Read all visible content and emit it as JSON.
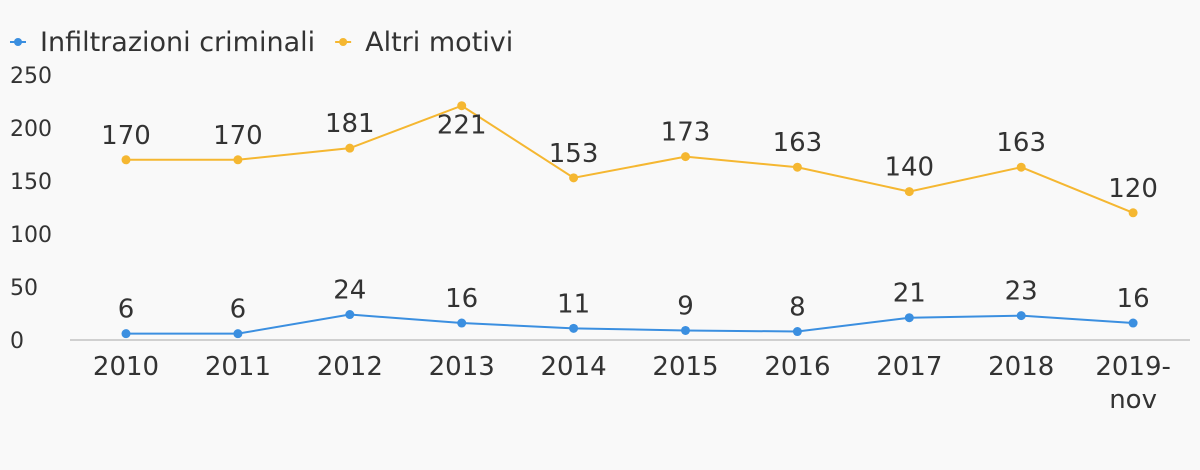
{
  "chart_data": {
    "type": "line",
    "categories": [
      "2010",
      "2011",
      "2012",
      "2013",
      "2014",
      "2015",
      "2016",
      "2017",
      "2018",
      "2019-nov"
    ],
    "series": [
      {
        "name": "Infiltrazioni criminali",
        "color": "#3b8fe0",
        "values": [
          6,
          6,
          24,
          16,
          11,
          9,
          8,
          21,
          23,
          16
        ]
      },
      {
        "name": "Altri motivi",
        "color": "#f5b731",
        "values": [
          170,
          170,
          181,
          221,
          153,
          173,
          163,
          140,
          163,
          120
        ]
      }
    ],
    "yticks": [
      "0",
      "50",
      "100",
      "150",
      "200",
      "250"
    ],
    "ylim": [
      0,
      250
    ],
    "title": "",
    "xlabel": "",
    "ylabel": "",
    "grid": false,
    "legend_position": "top-left",
    "data_labels": true
  },
  "colors": {
    "background": "#f9f9f9",
    "axis": "#d0d0d0",
    "text": "#333333"
  }
}
